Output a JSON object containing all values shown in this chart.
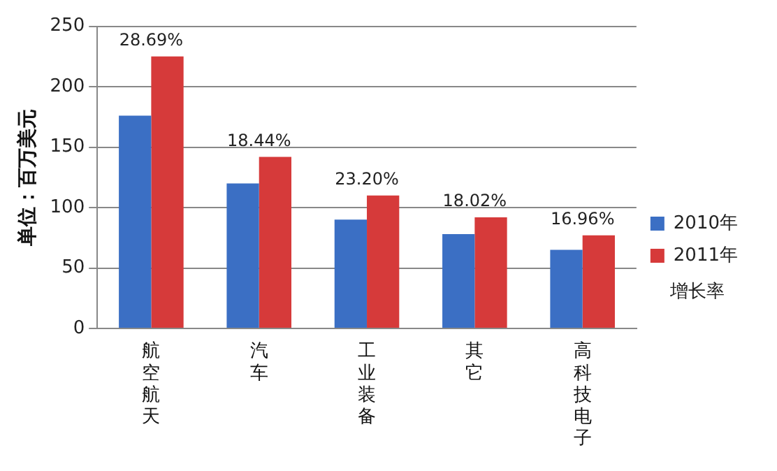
{
  "chart_data": {
    "type": "bar",
    "ylabel": "单位：百万美元",
    "categories": [
      "航空航天",
      "汽车",
      "工业装备",
      "其它",
      "高科技电子"
    ],
    "series": [
      {
        "name": "2010年",
        "color": "#3b6fc4",
        "values": [
          176,
          120,
          90,
          78,
          65
        ]
      },
      {
        "name": "2011年",
        "color": "#d63a3a",
        "values": [
          225,
          142,
          110,
          92,
          77
        ]
      }
    ],
    "ylim": [
      0,
      250
    ],
    "yticks": [
      0,
      50,
      100,
      150,
      200,
      250
    ],
    "grid": "y",
    "legend": "right",
    "annotations": [
      {
        "text": "28.69%",
        "x": "航空航天",
        "y": 225
      },
      {
        "text": "18.44%",
        "x": "汽车",
        "y": 142
      },
      {
        "text": "23.20%",
        "x": "工业装备",
        "y": 110
      },
      {
        "text": "18.02%",
        "x": "其它",
        "y": 92
      },
      {
        "text": "16.96%",
        "x": "高科技电子",
        "y": 77
      },
      "增长率"
    ]
  }
}
